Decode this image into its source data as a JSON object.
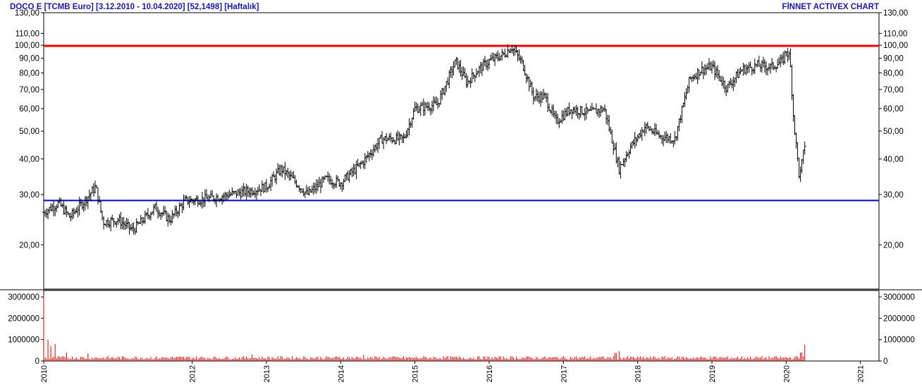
{
  "header": {
    "left_title": "DOCO  E  [TCMB Euro]  [3.12.2010 - 10.04.2020]  [52,1498]  [Haftalık]",
    "right_title": "FİNNET ACTIVEX CHART"
  },
  "colors": {
    "title": "#1a1aa8",
    "bars": "#000000",
    "resistance": "#ff0000",
    "support": "#0000cc",
    "volume": "#cc0000",
    "frame": "#000000"
  },
  "chart_data": [
    {
      "type": "ohlc",
      "scale": "log",
      "ylim": [
        14,
        130
      ],
      "y_ticks": [
        20,
        30,
        40,
        50,
        60,
        70,
        80,
        90,
        100,
        110,
        130
      ],
      "y_tick_labels": [
        "20,00",
        "30,00",
        "40,00",
        "50,00",
        "60,00",
        "70,00",
        "80,00",
        "90,00",
        "100,00",
        "110,00",
        "130,00"
      ],
      "xlim": [
        2010.0,
        2021.25
      ],
      "x_ticks": [
        2010,
        2012,
        2013,
        2014,
        2015,
        2016,
        2017,
        2018,
        2019,
        2020,
        2021
      ],
      "x_tick_labels": [
        "2010",
        "2012",
        "2013",
        "2014",
        "2015",
        "2016",
        "2017",
        "2018",
        "2019",
        "2020",
        "2021"
      ],
      "horizontal_lines": [
        {
          "value": 99.5,
          "color": "#ff0000"
        },
        {
          "value": 28.6,
          "color": "#0000cc"
        }
      ],
      "price_path": [
        [
          2010.0,
          26
        ],
        [
          2010.2,
          28
        ],
        [
          2010.35,
          25
        ],
        [
          2010.55,
          28.5
        ],
        [
          2010.7,
          32
        ],
        [
          2010.8,
          24
        ],
        [
          2011.0,
          24.5
        ],
        [
          2011.2,
          22.5
        ],
        [
          2011.5,
          27
        ],
        [
          2011.7,
          24.5
        ],
        [
          2011.9,
          28.5
        ],
        [
          2012.2,
          29
        ],
        [
          2012.5,
          30
        ],
        [
          2012.8,
          31
        ],
        [
          2013.0,
          32
        ],
        [
          2013.2,
          37
        ],
        [
          2013.4,
          33
        ],
        [
          2013.55,
          30
        ],
        [
          2013.8,
          34
        ],
        [
          2014.0,
          33
        ],
        [
          2014.3,
          39
        ],
        [
          2014.55,
          47
        ],
        [
          2014.85,
          47
        ],
        [
          2015.0,
          60
        ],
        [
          2015.3,
          62
        ],
        [
          2015.55,
          88
        ],
        [
          2015.7,
          74
        ],
        [
          2015.85,
          82
        ],
        [
          2016.0,
          88
        ],
        [
          2016.2,
          93
        ],
        [
          2016.3,
          99
        ],
        [
          2016.45,
          86
        ],
        [
          2016.6,
          66
        ],
        [
          2016.75,
          66
        ],
        [
          2016.9,
          54
        ],
        [
          2017.1,
          60
        ],
        [
          2017.35,
          58
        ],
        [
          2017.55,
          60
        ],
        [
          2017.75,
          37
        ],
        [
          2017.9,
          44
        ],
        [
          2018.1,
          52
        ],
        [
          2018.3,
          48
        ],
        [
          2018.5,
          47
        ],
        [
          2018.7,
          76
        ],
        [
          2018.85,
          82
        ],
        [
          2019.0,
          84
        ],
        [
          2019.2,
          71
        ],
        [
          2019.4,
          82
        ],
        [
          2019.6,
          85
        ],
        [
          2019.8,
          84
        ],
        [
          2019.95,
          88
        ],
        [
          2020.0,
          96
        ],
        [
          2020.05,
          90
        ],
        [
          2020.1,
          55
        ],
        [
          2020.18,
          34
        ],
        [
          2020.25,
          45
        ]
      ]
    },
    {
      "type": "bar",
      "series": "volume",
      "ylim": [
        0,
        3300000
      ],
      "y_ticks": [
        0,
        1000000,
        2000000,
        3000000
      ],
      "y_tick_labels": [
        "0",
        "1000000",
        "2000000",
        "3000000"
      ],
      "x_ticks": [
        2010,
        2012,
        2013,
        2014,
        2015,
        2016,
        2017,
        2018,
        2019,
        2020,
        2021
      ],
      "x_tick_labels": [
        "2010",
        "2012",
        "2013",
        "2014",
        "2015",
        "2016",
        "2017",
        "2018",
        "2019",
        "2020",
        "2021"
      ],
      "volume_spikes": [
        [
          2010.0,
          3100000
        ],
        [
          2010.05,
          1000000
        ],
        [
          2010.1,
          700000
        ],
        [
          2010.15,
          800000
        ],
        [
          2010.3,
          400000
        ],
        [
          2010.6,
          350000
        ],
        [
          2012.8,
          300000
        ],
        [
          2014.3,
          280000
        ],
        [
          2017.7,
          380000
        ],
        [
          2017.75,
          450000
        ],
        [
          2020.2,
          400000
        ],
        [
          2020.25,
          750000
        ]
      ],
      "volume_base": 150000
    }
  ]
}
